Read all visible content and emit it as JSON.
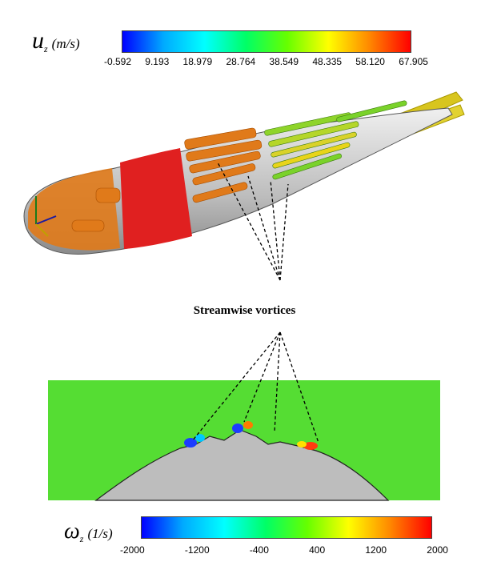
{
  "top_colorbar": {
    "symbol": "u",
    "subscript": "z",
    "unit": "(m/s)",
    "ticks": [
      "-0.592",
      "9.193",
      "18.979",
      "28.764",
      "38.549",
      "48.335",
      "58.120",
      "67.905"
    ],
    "gradient": [
      "#0000ff",
      "#00aaff",
      "#00ffff",
      "#00ff66",
      "#66ff00",
      "#ffff00",
      "#ff8800",
      "#ff0000"
    ]
  },
  "annotation": {
    "label": "Streamwise vortices"
  },
  "bottom_colorbar": {
    "symbol": "ω",
    "subscript": "z",
    "unit": "(1/s)",
    "ticks": [
      "-2000",
      "-1200",
      "-400",
      "400",
      "1200",
      "2000"
    ],
    "gradient": [
      "#0000ff",
      "#00aaff",
      "#00ffff",
      "#00ff66",
      "#66ff00",
      "#ffff00",
      "#ff8800",
      "#ff0000"
    ]
  },
  "colors": {
    "field_background": "#55dd33",
    "surface_gray": "#cfcfcf",
    "iso_red": "#e02020",
    "iso_orange": "#e07a1a",
    "iso_yellow": "#e8d41a",
    "iso_green": "#7ad22a"
  }
}
